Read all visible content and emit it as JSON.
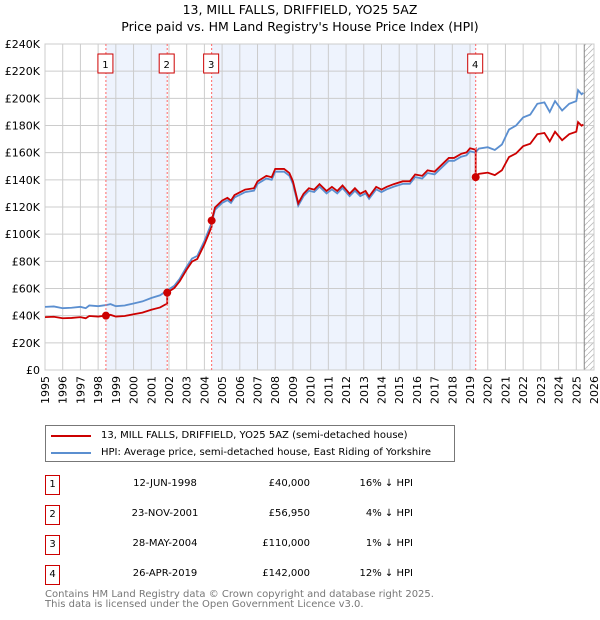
{
  "chart_data": {
    "type": "line",
    "title": "13, MILL FALLS, DRIFFIELD, YO25 5AZ",
    "subtitle": "Price paid vs. HM Land Registry's House Price Index (HPI)",
    "xlim": [
      1995,
      2026
    ],
    "ylim": [
      0,
      240000
    ],
    "x_ticks": [
      1995,
      1996,
      1997,
      1998,
      1999,
      2000,
      2001,
      2002,
      2003,
      2004,
      2005,
      2006,
      2007,
      2008,
      2009,
      2010,
      2011,
      2012,
      2013,
      2014,
      2015,
      2016,
      2017,
      2018,
      2019,
      2020,
      2021,
      2022,
      2023,
      2024,
      2025,
      2026
    ],
    "y_ticks": [
      "£0",
      "£20K",
      "£40K",
      "£60K",
      "£80K",
      "£100K",
      "£120K",
      "£140K",
      "£160K",
      "£180K",
      "£200K",
      "£220K",
      "£240K"
    ],
    "grid": true,
    "colors": {
      "property": "#cc0000",
      "hpi": "#5b8fd0",
      "shade": "#eef3fd",
      "marker_line": "#ff6666"
    },
    "hpi_series": {
      "name": "HPI: Average price, semi-detached house, East Riding of Yorkshire",
      "points": [
        [
          1995,
          46.5
        ],
        [
          1995.5,
          46.8
        ],
        [
          1996,
          45.5
        ],
        [
          1996.5,
          45.8
        ],
        [
          1997,
          46.5
        ],
        [
          1997.3,
          45.5
        ],
        [
          1997.5,
          47.5
        ],
        [
          1998,
          47
        ],
        [
          1998.45,
          47.8
        ],
        [
          1998.7,
          48.5
        ],
        [
          1999,
          47
        ],
        [
          1999.5,
          47.5
        ],
        [
          2000,
          49
        ],
        [
          2000.5,
          50.5
        ],
        [
          2001,
          53
        ],
        [
          2001.5,
          55
        ],
        [
          2001.9,
          58.5
        ],
        [
          2002.3,
          62
        ],
        [
          2002.6,
          67
        ],
        [
          2003,
          76
        ],
        [
          2003.3,
          82
        ],
        [
          2003.6,
          84
        ],
        [
          2004,
          95
        ],
        [
          2004.4,
          108
        ],
        [
          2004.6,
          118
        ],
        [
          2005,
          123
        ],
        [
          2005.3,
          125
        ],
        [
          2005.5,
          123
        ],
        [
          2005.7,
          127
        ],
        [
          2006,
          129
        ],
        [
          2006.3,
          131
        ],
        [
          2006.8,
          132
        ],
        [
          2007,
          137
        ],
        [
          2007.5,
          141
        ],
        [
          2007.8,
          140
        ],
        [
          2008,
          146
        ],
        [
          2008.5,
          146
        ],
        [
          2008.8,
          143
        ],
        [
          2009,
          137
        ],
        [
          2009.3,
          121
        ],
        [
          2009.6,
          128
        ],
        [
          2009.9,
          132
        ],
        [
          2010.2,
          131
        ],
        [
          2010.5,
          135
        ],
        [
          2010.9,
          130
        ],
        [
          2011.2,
          133
        ],
        [
          2011.5,
          130
        ],
        [
          2011.8,
          134
        ],
        [
          2012.2,
          128
        ],
        [
          2012.5,
          132
        ],
        [
          2012.8,
          128
        ],
        [
          2013.1,
          130
        ],
        [
          2013.3,
          126
        ],
        [
          2013.7,
          133
        ],
        [
          2014,
          131
        ],
        [
          2014.3,
          133
        ],
        [
          2014.7,
          135
        ],
        [
          2015.2,
          137
        ],
        [
          2015.6,
          137
        ],
        [
          2015.9,
          142
        ],
        [
          2016.3,
          141
        ],
        [
          2016.6,
          145
        ],
        [
          2017,
          144
        ],
        [
          2017.4,
          149
        ],
        [
          2017.8,
          154
        ],
        [
          2018.1,
          154
        ],
        [
          2018.5,
          157
        ],
        [
          2018.8,
          158
        ],
        [
          2019,
          161
        ],
        [
          2019.3,
          160
        ],
        [
          2019.5,
          163
        ],
        [
          2020,
          164
        ],
        [
          2020.4,
          162
        ],
        [
          2020.8,
          166
        ],
        [
          2021.2,
          177
        ],
        [
          2021.6,
          180
        ],
        [
          2022,
          186
        ],
        [
          2022.4,
          188
        ],
        [
          2022.8,
          196
        ],
        [
          2023.2,
          197
        ],
        [
          2023.5,
          190
        ],
        [
          2023.8,
          198
        ],
        [
          2024.2,
          191
        ],
        [
          2024.6,
          196
        ],
        [
          2025,
          198
        ],
        [
          2025.1,
          206
        ],
        [
          2025.3,
          203
        ],
        [
          2025.4,
          204
        ]
      ]
    },
    "property_series": {
      "name": "13, MILL FALLS, DRIFFIELD, YO25 5AZ (semi-detached house)"
    },
    "sales": [
      {
        "n": "1",
        "x": 1998.44,
        "date": "12-JUN-1998",
        "price": 40000,
        "price_label": "£40,000",
        "hpi": "16% ↓ HPI"
      },
      {
        "n": "2",
        "x": 2001.9,
        "date": "23-NOV-2001",
        "price": 56950,
        "price_label": "£56,950",
        "hpi": "4% ↓ HPI"
      },
      {
        "n": "3",
        "x": 2004.41,
        "date": "28-MAY-2004",
        "price": 110000,
        "price_label": "£110,000",
        "hpi": "1% ↓ HPI"
      },
      {
        "n": "4",
        "x": 2019.32,
        "date": "26-APR-2019",
        "price": 142000,
        "price_label": "£142,000",
        "hpi": "12% ↓ HPI"
      }
    ],
    "data_end": 2025.45
  },
  "footer": {
    "line1": "Contains HM Land Registry data © Crown copyright and database right 2025.",
    "line2": "This data is licensed under the Open Government Licence v3.0."
  }
}
